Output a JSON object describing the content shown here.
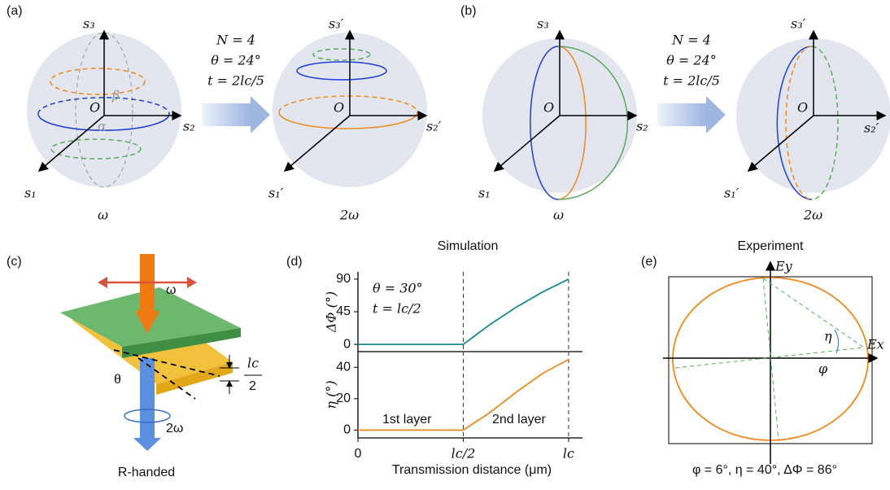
{
  "panel_a": {
    "label": "(a)",
    "s3": "s₃",
    "s2": "s₂",
    "s1": "s₁",
    "origin": "O",
    "beta": "β",
    "alpha": "α",
    "freq": "ω",
    "s3p": "s₃′",
    "s2p": "s₂′",
    "s1p": "s₁′",
    "origin2": "O",
    "freq2": "2ω",
    "params": [
      "N = 4",
      "θ = 24°",
      "t = 2lc/5"
    ]
  },
  "panel_b": {
    "label": "(b)",
    "s3": "s₃",
    "s2": "s₂",
    "s1": "s₁",
    "origin": "O",
    "freq": "ω",
    "s3p": "s₃′",
    "s2p": "s₂′",
    "s1p": "s₁′",
    "origin2": "O",
    "freq2": "2ω",
    "params": [
      "N = 4",
      "θ = 24°",
      "t = 2lc/5"
    ]
  },
  "panel_c": {
    "label": "(c)",
    "omega": "ω",
    "theta": "θ",
    "thickness": "lc",
    "half": "2",
    "omega2": "2ω",
    "handed": "R-handed"
  },
  "panel_e": {
    "label": "(e)",
    "title": "Experiment",
    "ey": "Ey",
    "ex": "Ex",
    "eta": "η",
    "phi": "φ",
    "caption": "φ = 6°, η = 40°, ΔΦ = 86°"
  },
  "panel_d": {
    "label": "(d)"
  },
  "chart_data": [
    {
      "type": "line",
      "title": "Simulation",
      "ylabel": "ΔΦ (°)",
      "x": [
        0,
        0.5,
        0.625,
        0.75,
        0.875,
        1
      ],
      "xlim": [
        0,
        1.066
      ],
      "ylim": [
        -10,
        100
      ],
      "yticks": [
        0,
        45,
        90
      ],
      "series": [
        {
          "color": "#1b8a8c",
          "values": [
            0,
            0,
            27,
            51,
            72,
            90
          ]
        }
      ],
      "annotations": [
        "θ = 30°",
        "t = lc/2"
      ]
    },
    {
      "type": "line",
      "ylabel": "η (°)",
      "xlabel": "Transmission distance (μm)",
      "x": [
        0,
        0.5,
        0.625,
        0.75,
        0.875,
        1
      ],
      "xlim": [
        0,
        1.066
      ],
      "ylim": [
        -5,
        50
      ],
      "yticks": [
        0,
        20,
        40
      ],
      "xticks": [
        0,
        {
          "value": 0.5,
          "label": "lc/2"
        },
        {
          "value": 1,
          "label": "lc"
        }
      ],
      "series": [
        {
          "color": "#f08a1c",
          "values": [
            0,
            0,
            11,
            24,
            36,
            45
          ]
        }
      ],
      "annotations": [
        "1st layer",
        "2nd layer"
      ]
    }
  ]
}
